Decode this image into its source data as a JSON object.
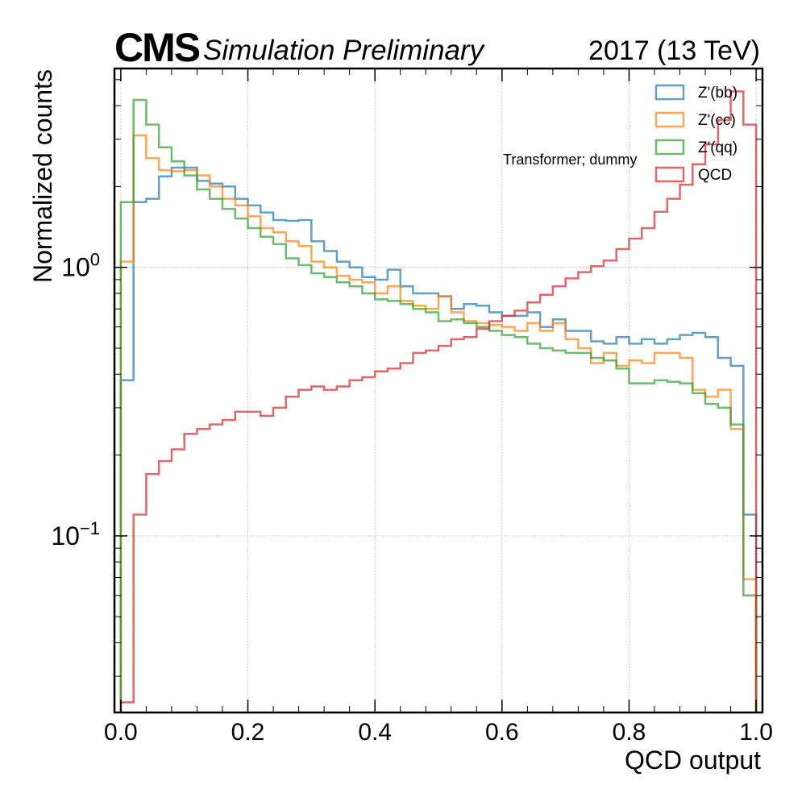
{
  "header": {
    "experiment": "CMS",
    "subtitle": "Simulation Preliminary",
    "lumi": "2017 (13 TeV)"
  },
  "annotation": "Transformer; dummy",
  "chart_data": {
    "type": "line",
    "step": true,
    "xlabel": "QCD output",
    "ylabel": "Normalized counts",
    "xlim": [
      -0.01,
      1.01
    ],
    "ylim": [
      0.022,
      5.5
    ],
    "yscale": "log",
    "x_ticks": [
      "0.0",
      "0.2",
      "0.4",
      "0.6",
      "0.8",
      "1.0"
    ],
    "y_ticks": [
      {
        "value": 1,
        "label": "10^0"
      },
      {
        "value": 0.1,
        "label": "10^-1"
      }
    ],
    "grid": true,
    "legend_position": "top-right",
    "bin_edges_start": 0,
    "bin_width": 0.02,
    "series": [
      {
        "name": "Z'(bb)",
        "color": "#1f77b4",
        "values": [
          0.38,
          1.75,
          1.8,
          2.18,
          2.35,
          2.35,
          2.1,
          2.05,
          2.0,
          1.8,
          1.7,
          1.6,
          1.5,
          1.49,
          1.5,
          1.25,
          1.15,
          1.05,
          1.0,
          0.92,
          0.9,
          0.98,
          0.85,
          0.8,
          0.8,
          0.78,
          0.7,
          0.73,
          0.72,
          0.68,
          0.66,
          0.66,
          0.68,
          0.6,
          0.64,
          0.58,
          0.58,
          0.53,
          0.52,
          0.55,
          0.52,
          0.54,
          0.52,
          0.54,
          0.56,
          0.57,
          0.55,
          0.46,
          0.43,
          0.12
        ]
      },
      {
        "name": "Z'(cc)",
        "color": "#ff7f0e",
        "values": [
          1.05,
          3.1,
          2.55,
          2.3,
          2.28,
          2.3,
          2.2,
          2.0,
          1.8,
          1.7,
          1.55,
          1.4,
          1.35,
          1.25,
          1.2,
          1.05,
          1.0,
          0.93,
          0.9,
          0.88,
          0.8,
          0.85,
          0.75,
          0.72,
          0.7,
          0.78,
          0.68,
          0.63,
          0.62,
          0.61,
          0.6,
          0.58,
          0.62,
          0.58,
          0.62,
          0.54,
          0.5,
          0.44,
          0.48,
          0.43,
          0.45,
          0.44,
          0.48,
          0.48,
          0.46,
          0.35,
          0.33,
          0.35,
          0.25,
          0.069
        ]
      },
      {
        "name": "Z'(qq)",
        "color": "#2ca02c",
        "values": [
          1.75,
          4.2,
          3.4,
          2.8,
          2.48,
          2.2,
          1.95,
          1.8,
          1.65,
          1.52,
          1.4,
          1.3,
          1.22,
          1.08,
          1.02,
          0.95,
          0.92,
          0.88,
          0.85,
          0.8,
          0.76,
          0.75,
          0.73,
          0.7,
          0.68,
          0.63,
          0.64,
          0.62,
          0.6,
          0.58,
          0.56,
          0.55,
          0.52,
          0.5,
          0.49,
          0.48,
          0.48,
          0.46,
          0.45,
          0.42,
          0.37,
          0.37,
          0.38,
          0.375,
          0.37,
          0.34,
          0.31,
          0.3,
          0.26,
          0.06
        ]
      },
      {
        "name": "QCD",
        "color": "#d62728",
        "values": [
          0.024,
          0.12,
          0.17,
          0.19,
          0.21,
          0.24,
          0.25,
          0.26,
          0.27,
          0.29,
          0.29,
          0.28,
          0.3,
          0.33,
          0.35,
          0.36,
          0.35,
          0.36,
          0.38,
          0.39,
          0.41,
          0.42,
          0.44,
          0.48,
          0.49,
          0.51,
          0.54,
          0.55,
          0.59,
          0.63,
          0.66,
          0.69,
          0.74,
          0.79,
          0.85,
          0.91,
          0.96,
          1.01,
          1.06,
          1.17,
          1.28,
          1.4,
          1.61,
          1.8,
          2.03,
          2.42,
          2.87,
          3.53,
          4.52,
          3.4
        ]
      }
    ]
  }
}
